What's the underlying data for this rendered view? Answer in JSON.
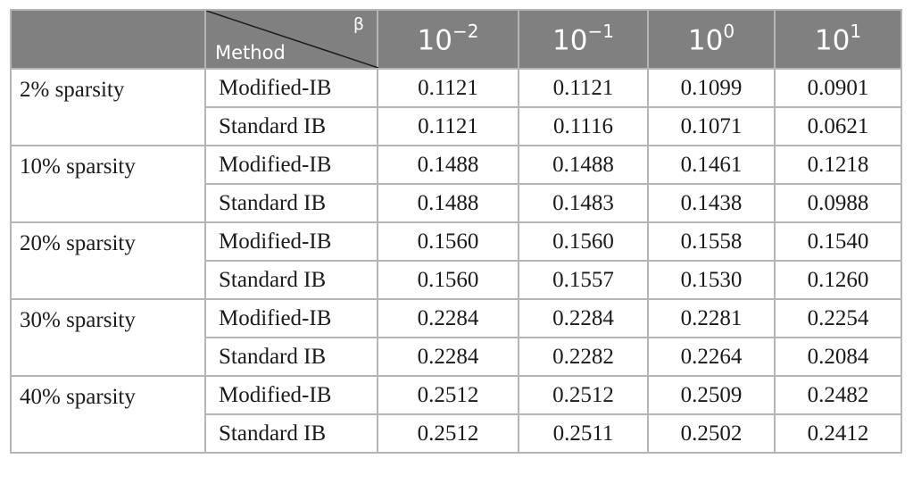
{
  "header": {
    "corner_beta": "β",
    "corner_method": "Method",
    "columns": [
      {
        "base": "10",
        "exp": "−2"
      },
      {
        "base": "10",
        "exp": "−1"
      },
      {
        "base": "10",
        "exp": "0"
      },
      {
        "base": "10",
        "exp": "1"
      }
    ]
  },
  "groups": [
    {
      "label": "2% sparsity",
      "rows": [
        {
          "method": "Modified-IB",
          "values": [
            "0.1121",
            "0.1121",
            "0.1099",
            "0.0901"
          ]
        },
        {
          "method": "Standard IB",
          "values": [
            "0.1121",
            "0.1116",
            "0.1071",
            "0.0621"
          ]
        }
      ]
    },
    {
      "label": "10% sparsity",
      "rows": [
        {
          "method": "Modified-IB",
          "values": [
            "0.1488",
            "0.1488",
            "0.1461",
            "0.1218"
          ]
        },
        {
          "method": "Standard IB",
          "values": [
            "0.1488",
            "0.1483",
            "0.1438",
            "0.0988"
          ]
        }
      ]
    },
    {
      "label": "20% sparsity",
      "rows": [
        {
          "method": "Modified-IB",
          "values": [
            "0.1560",
            "0.1560",
            "0.1558",
            "0.1540"
          ]
        },
        {
          "method": "Standard IB",
          "values": [
            "0.1560",
            "0.1557",
            "0.1530",
            "0.1260"
          ]
        }
      ]
    },
    {
      "label": "30% sparsity",
      "rows": [
        {
          "method": "Modified-IB",
          "values": [
            "0.2284",
            "0.2284",
            "0.2281",
            "0.2254"
          ]
        },
        {
          "method": "Standard IB",
          "values": [
            "0.2284",
            "0.2282",
            "0.2264",
            "0.2084"
          ]
        }
      ]
    },
    {
      "label": "40% sparsity",
      "rows": [
        {
          "method": "Modified-IB",
          "values": [
            "0.2512",
            "0.2512",
            "0.2509",
            "0.2482"
          ]
        },
        {
          "method": "Standard IB",
          "values": [
            "0.2512",
            "0.2511",
            "0.2502",
            "0.2412"
          ]
        }
      ]
    }
  ]
}
